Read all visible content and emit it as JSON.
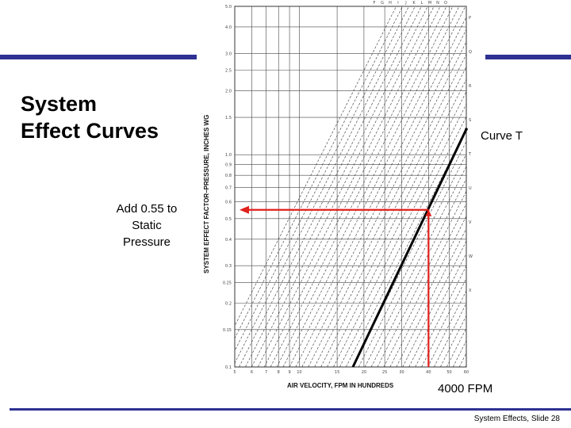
{
  "slide": {
    "title_line1": "System",
    "title_line2": "Effect Curves",
    "footer": "System Effects, Slide 28"
  },
  "callouts": {
    "add_line1": "Add 0.55 to",
    "add_line2": "Static",
    "add_line3": "Pressure",
    "curve": "Curve T",
    "fpm": "4000 FPM"
  },
  "chart": {
    "y_axis_title": "SYSTEM EFFECT FACTOR–PRESSURE, INCHES WG",
    "x_axis_title": "AIR VELOCITY, FPM IN HUNDREDS"
  },
  "chart_data": {
    "type": "line",
    "x_scale": "log",
    "y_scale": "log",
    "x_ticks": [
      "5",
      "6",
      "7",
      "8",
      "9",
      "10",
      "15",
      "20",
      "25",
      "30",
      "40",
      "50",
      "60"
    ],
    "y_ticks": [
      "5.0",
      "4.0",
      "3.0",
      "2.5",
      "2.0",
      "1.5",
      "1.0",
      "0.9",
      "0.8",
      "0.7",
      "0.6",
      "0.5",
      "0.4",
      "0.3",
      "0.25",
      "0.2",
      "0.15",
      "0.1"
    ],
    "curves_top": [
      "F",
      "G",
      "H",
      "I",
      "J",
      "K",
      "L",
      "M",
      "N",
      "O"
    ],
    "curves_right": [
      "P",
      "Q",
      "R",
      "S",
      "T",
      "U",
      "V",
      "W",
      "X"
    ],
    "highlighted_curve": "T",
    "reading": {
      "velocity_fpm_hundreds": 40,
      "system_effect_in_wg": 0.55
    },
    "colors": {
      "highlight_curve": "#000000",
      "reading_lines": "#e0201b",
      "grid": "#333333",
      "bars": "#2e3192"
    }
  }
}
